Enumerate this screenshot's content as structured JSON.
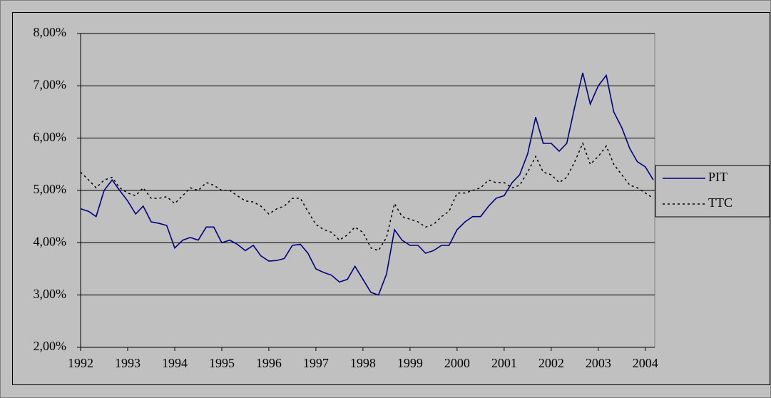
{
  "chart_data": {
    "type": "line",
    "x": [
      1992,
      1992.17,
      1992.33,
      1992.5,
      1992.67,
      1992.83,
      1993,
      1993.17,
      1993.33,
      1993.5,
      1993.67,
      1993.83,
      1994,
      1994.17,
      1994.33,
      1994.5,
      1994.67,
      1994.83,
      1995,
      1995.17,
      1995.33,
      1995.5,
      1995.67,
      1995.83,
      1996,
      1996.17,
      1996.33,
      1996.5,
      1996.67,
      1996.83,
      1997,
      1997.17,
      1997.33,
      1997.5,
      1997.67,
      1997.83,
      1998,
      1998.17,
      1998.33,
      1998.5,
      1998.67,
      1998.83,
      1999,
      1999.17,
      1999.33,
      1999.5,
      1999.67,
      1999.83,
      2000,
      2000.17,
      2000.33,
      2000.5,
      2000.67,
      2000.83,
      2001,
      2001.17,
      2001.33,
      2001.5,
      2001.67,
      2001.83,
      2002,
      2002.17,
      2002.33,
      2002.5,
      2002.67,
      2002.83,
      2003,
      2003.17,
      2003.33,
      2003.5,
      2003.67,
      2003.83,
      2004,
      2004.17
    ],
    "series": [
      {
        "name": "PIT",
        "color": "#000080",
        "style": "solid",
        "values": [
          4.65,
          4.6,
          4.5,
          5.0,
          5.2,
          5.0,
          4.8,
          4.55,
          4.7,
          4.4,
          4.37,
          4.33,
          3.9,
          4.05,
          4.1,
          4.05,
          4.3,
          4.3,
          4.0,
          4.05,
          3.97,
          3.85,
          3.95,
          3.75,
          3.65,
          3.66,
          3.7,
          3.95,
          3.97,
          3.8,
          3.5,
          3.43,
          3.38,
          3.25,
          3.3,
          3.55,
          3.3,
          3.05,
          3.0,
          3.4,
          4.25,
          4.05,
          3.95,
          3.95,
          3.8,
          3.85,
          3.95,
          3.95,
          4.25,
          4.4,
          4.5,
          4.5,
          4.7,
          4.85,
          4.9,
          5.15,
          5.3,
          5.7,
          6.4,
          5.9,
          5.9,
          5.75,
          5.9,
          6.6,
          7.25,
          6.65,
          7.0,
          7.2,
          6.5,
          6.2,
          5.8,
          5.55,
          5.45,
          5.2
        ]
      },
      {
        "name": "TTC",
        "color": "#000000",
        "style": "dotted",
        "values": [
          5.35,
          5.2,
          5.05,
          5.2,
          5.25,
          5.05,
          4.95,
          4.9,
          5.05,
          4.85,
          4.85,
          4.88,
          4.75,
          4.9,
          5.05,
          5.0,
          5.15,
          5.1,
          5.0,
          5.0,
          4.9,
          4.8,
          4.78,
          4.7,
          4.55,
          4.65,
          4.7,
          4.85,
          4.85,
          4.6,
          4.35,
          4.25,
          4.2,
          4.05,
          4.15,
          4.3,
          4.2,
          3.9,
          3.85,
          4.1,
          4.75,
          4.5,
          4.45,
          4.4,
          4.3,
          4.35,
          4.5,
          4.6,
          4.95,
          4.95,
          5.0,
          5.05,
          5.2,
          5.15,
          5.15,
          5.05,
          5.1,
          5.35,
          5.65,
          5.35,
          5.3,
          5.15,
          5.25,
          5.55,
          5.9,
          5.5,
          5.65,
          5.85,
          5.5,
          5.3,
          5.1,
          5.05,
          4.95,
          4.85
        ]
      }
    ],
    "xlim": [
      1992,
      2004.2
    ],
    "xticks": [
      1992,
      1993,
      1994,
      1995,
      1996,
      1997,
      1998,
      1999,
      2000,
      2001,
      2002,
      2003,
      2004
    ],
    "ylim": [
      2,
      8
    ],
    "yticks": [
      {
        "value": 2,
        "label": "2,00%"
      },
      {
        "value": 3,
        "label": "3,00%"
      },
      {
        "value": 4,
        "label": "4,00%"
      },
      {
        "value": 5,
        "label": "5,00%"
      },
      {
        "value": 6,
        "label": "6,00%"
      },
      {
        "value": 7,
        "label": "7,00%"
      },
      {
        "value": 8,
        "label": "8,00%"
      }
    ],
    "grid": true,
    "legend": "right"
  }
}
